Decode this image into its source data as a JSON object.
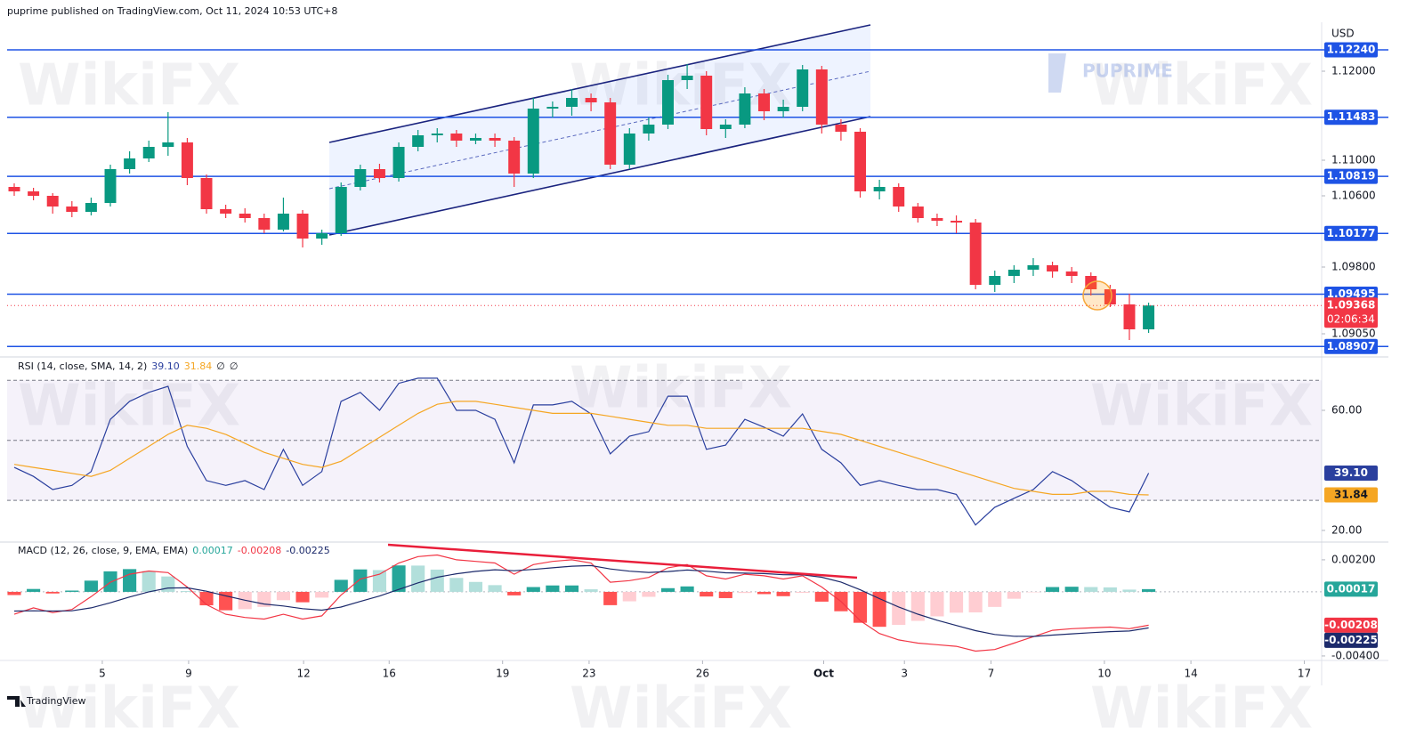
{
  "header": {
    "publisher": "puprime published on TradingView.com, Oct 11, 2024 10:53 UTC+8",
    "currency": "USD",
    "footer": "TradingView"
  },
  "watermarks": [
    "WikiFX",
    "PUPRIME"
  ],
  "chart_data": [
    {
      "type": "candlestick",
      "ohlc": [
        [
          1.107,
          1.1074,
          1.106,
          1.1065
        ],
        [
          1.1065,
          1.1069,
          1.1055,
          1.106
        ],
        [
          1.106,
          1.1063,
          1.104,
          1.1048
        ],
        [
          1.1048,
          1.1054,
          1.1036,
          1.1042
        ],
        [
          1.1042,
          1.1058,
          1.1038,
          1.1052
        ],
        [
          1.1052,
          1.1095,
          1.1048,
          1.109
        ],
        [
          1.109,
          1.111,
          1.1085,
          1.1102
        ],
        [
          1.1102,
          1.1122,
          1.1098,
          1.1115
        ],
        [
          1.1115,
          1.1154,
          1.1105,
          1.112
        ],
        [
          1.112,
          1.1125,
          1.1072,
          1.108
        ],
        [
          1.108,
          1.1084,
          1.104,
          1.1045
        ],
        [
          1.1045,
          1.105,
          1.1035,
          1.104
        ],
        [
          1.104,
          1.1046,
          1.103,
          1.1035
        ],
        [
          1.1035,
          1.104,
          1.1018,
          1.1022
        ],
        [
          1.1022,
          1.1058,
          1.102,
          1.104
        ],
        [
          1.104,
          1.1044,
          1.1002,
          1.1012
        ],
        [
          1.1012,
          1.1022,
          1.1005,
          1.1018
        ],
        [
          1.1018,
          1.1075,
          1.1015,
          1.107
        ],
        [
          1.107,
          1.1095,
          1.1066,
          1.109
        ],
        [
          1.109,
          1.1096,
          1.1075,
          1.108
        ],
        [
          1.108,
          1.112,
          1.1076,
          1.1115
        ],
        [
          1.1115,
          1.1134,
          1.111,
          1.1128
        ],
        [
          1.1128,
          1.1136,
          1.112,
          1.113
        ],
        [
          1.113,
          1.1134,
          1.1115,
          1.1122
        ],
        [
          1.1122,
          1.113,
          1.1118,
          1.1125
        ],
        [
          1.1125,
          1.113,
          1.1115,
          1.1122
        ],
        [
          1.1122,
          1.1126,
          1.107,
          1.1085
        ],
        [
          1.1085,
          1.117,
          1.108,
          1.1158
        ],
        [
          1.1158,
          1.1166,
          1.1148,
          1.116
        ],
        [
          1.116,
          1.118,
          1.115,
          1.117
        ],
        [
          1.117,
          1.1175,
          1.1155,
          1.1165
        ],
        [
          1.1165,
          1.117,
          1.109,
          1.1095
        ],
        [
          1.1095,
          1.1136,
          1.109,
          1.113
        ],
        [
          1.113,
          1.1148,
          1.1122,
          1.114
        ],
        [
          1.114,
          1.1196,
          1.1135,
          1.119
        ],
        [
          1.119,
          1.1208,
          1.118,
          1.1195
        ],
        [
          1.1195,
          1.12,
          1.1128,
          1.1135
        ],
        [
          1.1135,
          1.1146,
          1.1125,
          1.114
        ],
        [
          1.114,
          1.1182,
          1.1136,
          1.1175
        ],
        [
          1.1175,
          1.118,
          1.1145,
          1.1155
        ],
        [
          1.1155,
          1.1168,
          1.1148,
          1.116
        ],
        [
          1.116,
          1.1207,
          1.1155,
          1.1202
        ],
        [
          1.1202,
          1.1206,
          1.113,
          1.114
        ],
        [
          1.114,
          1.1146,
          1.1122,
          1.1132
        ],
        [
          1.1132,
          1.1136,
          1.1058,
          1.1065
        ],
        [
          1.1065,
          1.1078,
          1.1056,
          1.107
        ],
        [
          1.107,
          1.1074,
          1.1042,
          1.1048
        ],
        [
          1.1048,
          1.1052,
          1.103,
          1.1035
        ],
        [
          1.1035,
          1.104,
          1.1026,
          1.1032
        ],
        [
          1.1032,
          1.1038,
          1.1018,
          1.103
        ],
        [
          1.103,
          1.1034,
          1.0955,
          1.096
        ],
        [
          1.096,
          1.0976,
          1.0952,
          1.097
        ],
        [
          1.097,
          1.0982,
          1.0962,
          1.0977
        ],
        [
          1.0977,
          1.099,
          1.097,
          1.0982
        ],
        [
          1.0982,
          1.0986,
          1.0968,
          1.0975
        ],
        [
          1.0975,
          1.098,
          1.0962,
          1.097
        ],
        [
          1.097,
          1.0974,
          1.0948,
          1.0955
        ],
        [
          1.0955,
          1.096,
          1.0935,
          1.0938
        ],
        [
          1.0938,
          1.095,
          1.0898,
          1.091
        ],
        [
          1.091,
          1.094,
          1.0906,
          1.09368
        ]
      ],
      "up_color": "#089981",
      "down_color": "#f23645",
      "xlim": [
        -0.37,
        68
      ],
      "xticks": [
        {
          "value": 4.58,
          "label": "5"
        },
        {
          "value": 9.07,
          "label": "9"
        },
        {
          "value": 15.05,
          "label": "12"
        },
        {
          "value": 19.5,
          "label": "16"
        },
        {
          "value": 25.4,
          "label": "19"
        },
        {
          "value": 29.9,
          "label": "23"
        },
        {
          "value": 35.8,
          "label": "26"
        },
        {
          "value": 42.1,
          "label": "Oct"
        },
        {
          "value": 46.3,
          "label": "3"
        },
        {
          "value": 50.8,
          "label": "7"
        },
        {
          "value": 56.7,
          "label": "10"
        },
        {
          "value": 61.2,
          "label": "14"
        },
        {
          "value": 67.1,
          "label": "17"
        }
      ],
      "ylim": [
        1.0882,
        1.1255
      ],
      "yticks": [
        {
          "value": 1.12,
          "label": "1.12000"
        },
        {
          "value": 1.11,
          "label": "1.11000"
        },
        {
          "value": 1.106,
          "label": "1.10600"
        },
        {
          "value": 1.098,
          "label": "1.09800"
        },
        {
          "value": 1.0905,
          "label": "1.09050"
        }
      ],
      "levels": [
        {
          "value": 1.1224,
          "label": "1.12240"
        },
        {
          "value": 1.11483,
          "label": "1.11483"
        },
        {
          "value": 1.10819,
          "label": "1.10819"
        },
        {
          "value": 1.10177,
          "label": "1.10177"
        },
        {
          "value": 1.09495,
          "label": "1.09495"
        },
        {
          "value": 1.08907,
          "label": "1.08907"
        }
      ],
      "level_color": "#1e53e5",
      "last_price": {
        "value": 1.09368,
        "label": "1.09368"
      },
      "countdown": "02:06:34"
    },
    {
      "type": "line",
      "title": "RSI (14, close, SMA, 14, 2)",
      "legend_extra": [
        "∅",
        "∅"
      ],
      "ylim": [
        17.3,
        76.6
      ],
      "yticks": [
        {
          "value": 60,
          "label": "60.00"
        },
        {
          "value": 20,
          "label": "20.00"
        }
      ],
      "bands": [
        70,
        50,
        30
      ],
      "series": [
        {
          "color": "#2a3f9e",
          "last_label": "39.10",
          "values": [
            41,
            38,
            33.6,
            35,
            39.6,
            57,
            63,
            66,
            68,
            48,
            36.6,
            35,
            36.6,
            33.6,
            47,
            35,
            39.6,
            63,
            66,
            60,
            69,
            70.7,
            70.7,
            60,
            60,
            57,
            42.5,
            61.8,
            61.8,
            63,
            58.8,
            45.5,
            51.4,
            52.9,
            64.7,
            64.7,
            47,
            48.4,
            57,
            54.4,
            51.4,
            58.8,
            47,
            42.5,
            35,
            36.6,
            35,
            33.6,
            33.6,
            32,
            21.8,
            27.7,
            30.7,
            33.6,
            39.6,
            36.6,
            32,
            27.7,
            26.2,
            39.1
          ]
        },
        {
          "color": "#f5a623",
          "last_label": "31.84",
          "values": [
            42,
            41,
            40,
            39,
            38,
            40,
            44,
            48,
            52,
            55,
            54,
            52,
            49,
            46,
            44,
            42,
            41,
            43,
            47,
            51,
            55,
            59,
            62,
            63,
            63,
            62,
            61,
            60,
            59,
            59,
            59,
            58,
            57,
            56,
            55,
            55,
            54,
            54,
            54,
            54,
            54,
            54,
            53,
            52,
            50,
            48,
            46,
            44,
            42,
            40,
            38,
            36,
            34,
            33,
            32,
            32,
            33,
            33,
            32,
            31.84
          ]
        }
      ]
    },
    {
      "type": "combo",
      "title": "MACD (12, 26, close, 9, EMA, EMA)",
      "ylim": [
        -0.00417,
        0.00294
      ],
      "yticks": [
        {
          "value": 0.002,
          "label": "0.00200"
        },
        {
          "value": -0.004,
          "label": "-0.00400"
        }
      ],
      "series": [
        {
          "kind": "histogram",
          "color": "#26a69a",
          "last_label": "0.00017",
          "values": [
            -0.0002,
            0.00018,
            -0.0001,
            8e-05,
            0.0007,
            0.00128,
            0.00142,
            0.0013,
            0.00096,
            5e-05,
            -0.00084,
            -0.00115,
            -0.00108,
            -0.00094,
            -0.00052,
            -0.00065,
            -0.00036,
            0.00075,
            0.0014,
            0.00136,
            0.00165,
            0.00164,
            0.00139,
            0.00087,
            0.00062,
            0.00042,
            -0.00022,
            0.0003,
            0.0004,
            0.0004,
            0.00016,
            -0.00083,
            -0.00059,
            -0.00031,
            0.00023,
            0.00034,
            -0.00029,
            -0.00039,
            -7e-05,
            -0.00014,
            -0.00027,
            -6e-05,
            -0.00061,
            -0.00121,
            -0.00193,
            -0.00218,
            -0.00206,
            -0.00181,
            -0.00153,
            -0.0013,
            -0.00128,
            -0.00094,
            -0.00043,
            -2e-05,
            0.0003,
            0.00032,
            0.0003,
            0.00028,
            0.00014,
            0.00017
          ]
        },
        {
          "kind": "line",
          "color": "#f23645",
          "last_label": "-0.00208",
          "values": [
            -0.0014,
            -0.001,
            -0.0013,
            -0.0011,
            -0.0003,
            0.0006,
            0.0011,
            0.0013,
            0.0012,
            0.0003,
            -0.0008,
            -0.0014,
            -0.0016,
            -0.0017,
            -0.0014,
            -0.0017,
            -0.0015,
            -0.0002,
            0.0008,
            0.0011,
            0.0018,
            0.0022,
            0.0023,
            0.002,
            0.0019,
            0.0018,
            0.0011,
            0.0017,
            0.0019,
            0.002,
            0.0018,
            0.0006,
            0.0007,
            0.0009,
            0.0015,
            0.0017,
            0.001,
            0.0008,
            0.0011,
            0.001,
            0.0008,
            0.001,
            0.0003,
            -0.0006,
            -0.0018,
            -0.0026,
            -0.003,
            -0.0032,
            -0.0033,
            -0.0034,
            -0.0037,
            -0.0036,
            -0.0032,
            -0.0028,
            -0.0024,
            -0.0023,
            -0.00225,
            -0.0022,
            -0.0023,
            -0.00208
          ]
        },
        {
          "kind": "line",
          "color": "#1c2a6b",
          "last_label": "-0.00225",
          "values": [
            -0.0012,
            -0.00118,
            -0.0012,
            -0.00118,
            -0.001,
            -0.00068,
            -0.00032,
            0,
            0.00024,
            0.00025,
            4e-05,
            -0.00025,
            -0.00052,
            -0.00076,
            -0.00088,
            -0.00105,
            -0.00114,
            -0.00095,
            -0.0006,
            -0.00026,
            0.00015,
            0.00056,
            0.00091,
            0.00113,
            0.00128,
            0.00138,
            0.00132,
            0.0014,
            0.0015,
            0.0016,
            0.00164,
            0.00143,
            0.00129,
            0.00121,
            0.00127,
            0.00136,
            0.00129,
            0.00119,
            0.00117,
            0.00114,
            0.00107,
            0.00106,
            0.00091,
            0.00061,
            0.00013,
            -0.00042,
            -0.00094,
            -0.00139,
            -0.00177,
            -0.0021,
            -0.00242,
            -0.00266,
            -0.00277,
            -0.00278,
            -0.0027,
            -0.00262,
            -0.00255,
            -0.00248,
            -0.00244,
            -0.00225
          ]
        }
      ]
    }
  ]
}
